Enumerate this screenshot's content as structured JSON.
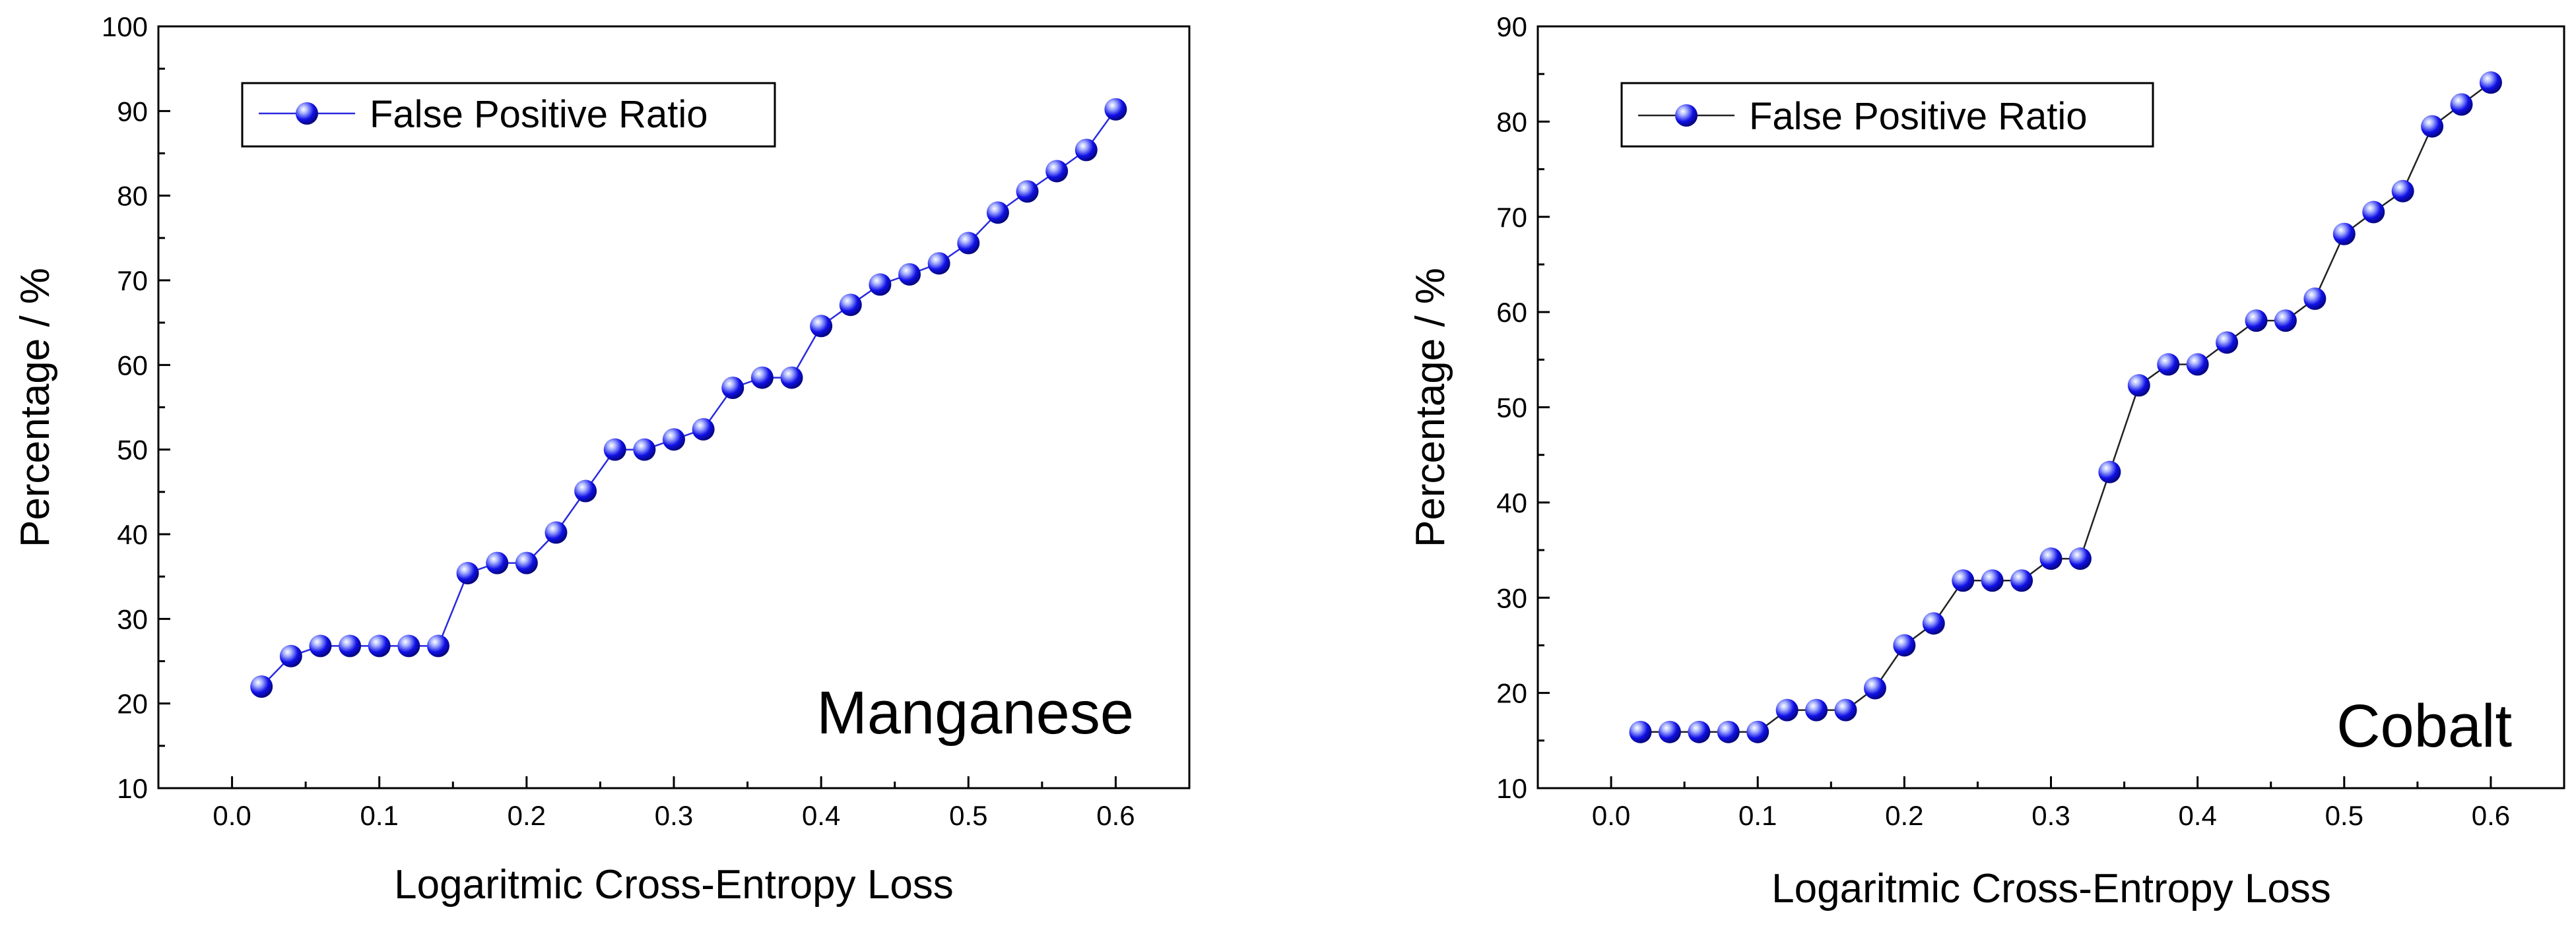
{
  "colors": {
    "marker": "#1010e6",
    "marker_highlight": "#aab4ff",
    "line_left": "#2a2adf",
    "line_right": "#222222",
    "axis": "#000000",
    "background": "#ffffff"
  },
  "icons": {
    "marker": "blue-sphere-marker-icon"
  },
  "chart_data": [
    {
      "type": "line",
      "title": "",
      "annotation": "Manganese",
      "xlabel": "Logaritmic Cross-Entropy Loss",
      "ylabel": "Percentage / %",
      "xlim": [
        -0.05,
        0.65
      ],
      "ylim": [
        10,
        100
      ],
      "xticks": [
        0.0,
        0.1,
        0.2,
        0.3,
        0.4,
        0.5,
        0.6
      ],
      "xtick_labels": [
        "0.0",
        "0.1",
        "0.2",
        "0.3",
        "0.4",
        "0.5",
        "0.6"
      ],
      "yticks": [
        10,
        20,
        30,
        40,
        50,
        60,
        70,
        80,
        90,
        100
      ],
      "ytick_labels": [
        "10",
        "20",
        "30",
        "40",
        "50",
        "60",
        "70",
        "80",
        "90",
        "100"
      ],
      "grid": false,
      "legend_position": "top-left",
      "series": [
        {
          "name": "False Positive Ratio",
          "x": [
            0.02,
            0.04,
            0.06,
            0.08,
            0.1,
            0.12,
            0.14,
            0.16,
            0.18,
            0.2,
            0.22,
            0.24,
            0.26,
            0.28,
            0.3,
            0.32,
            0.34,
            0.36,
            0.38,
            0.4,
            0.42,
            0.44,
            0.46,
            0.48,
            0.5,
            0.52,
            0.54,
            0.56,
            0.58,
            0.6
          ],
          "values": [
            22.0,
            25.6,
            26.8,
            26.8,
            26.8,
            26.8,
            26.8,
            35.4,
            36.6,
            36.6,
            40.2,
            45.1,
            50.0,
            50.0,
            51.2,
            52.4,
            57.3,
            58.5,
            58.5,
            64.6,
            67.1,
            69.5,
            70.7,
            72.0,
            74.4,
            78.0,
            80.5,
            82.9,
            85.4,
            90.2
          ]
        }
      ]
    },
    {
      "type": "line",
      "title": "",
      "annotation": "Cobalt",
      "xlabel": "Logaritmic Cross-Entropy Loss",
      "ylabel": "Percentage / %",
      "xlim": [
        -0.05,
        0.65
      ],
      "ylim": [
        10,
        90
      ],
      "xticks": [
        0.0,
        0.1,
        0.2,
        0.3,
        0.4,
        0.5,
        0.6
      ],
      "xtick_labels": [
        "0.0",
        "0.1",
        "0.2",
        "0.3",
        "0.4",
        "0.5",
        "0.6"
      ],
      "yticks": [
        10,
        20,
        30,
        40,
        50,
        60,
        70,
        80,
        90
      ],
      "ytick_labels": [
        "10",
        "20",
        "30",
        "40",
        "50",
        "60",
        "70",
        "80",
        "90"
      ],
      "grid": false,
      "legend_position": "top-left",
      "series": [
        {
          "name": "False Positive Ratio",
          "x": [
            0.02,
            0.04,
            0.06,
            0.08,
            0.1,
            0.12,
            0.14,
            0.16,
            0.18,
            0.2,
            0.22,
            0.24,
            0.26,
            0.28,
            0.3,
            0.32,
            0.34,
            0.36,
            0.38,
            0.4,
            0.42,
            0.44,
            0.46,
            0.48,
            0.5,
            0.52,
            0.54,
            0.56,
            0.58,
            0.6
          ],
          "values": [
            15.9,
            15.9,
            15.9,
            15.9,
            15.9,
            18.2,
            18.2,
            18.2,
            20.5,
            25.0,
            27.3,
            31.8,
            31.8,
            31.8,
            34.1,
            34.1,
            43.2,
            52.3,
            54.5,
            54.5,
            56.8,
            59.1,
            59.1,
            61.4,
            68.2,
            70.5,
            72.7,
            79.5,
            81.8,
            84.1
          ]
        }
      ]
    }
  ]
}
